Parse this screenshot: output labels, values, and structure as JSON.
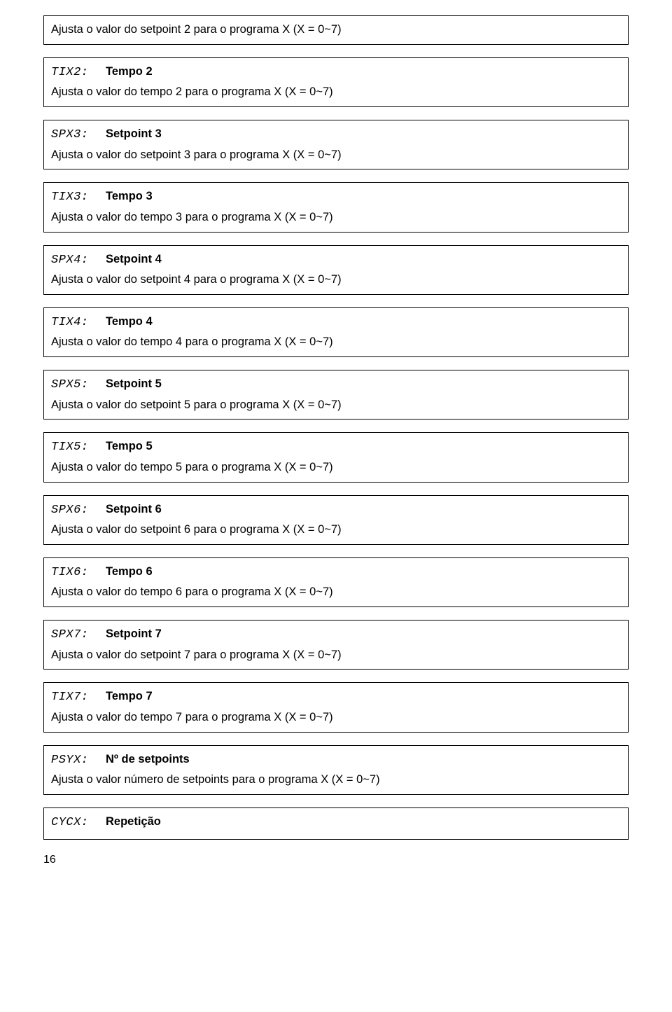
{
  "blocks": [
    {
      "description_only": true,
      "description": "Ajusta o valor do setpoint 2 para o programa X (X = 0~7)"
    },
    {
      "code": "TIX2:",
      "label": "Tempo 2",
      "description": "Ajusta o valor do tempo 2 para o programa X (X = 0~7)"
    },
    {
      "code": "SPX3:",
      "label": "Setpoint 3",
      "description": "Ajusta o valor do setpoint 3 para o programa X (X = 0~7)"
    },
    {
      "code": "TIX3:",
      "label": "Tempo 3",
      "description": "Ajusta o valor do tempo 3 para o programa X (X = 0~7)"
    },
    {
      "code": "SPX4:",
      "label": "Setpoint 4",
      "description": "Ajusta o valor do setpoint 4 para o programa X (X = 0~7)"
    },
    {
      "code": "TIX4:",
      "label": "Tempo 4",
      "description": "Ajusta o valor do tempo 4 para o programa X (X = 0~7)"
    },
    {
      "code": "SPX5:",
      "label": "Setpoint 5",
      "description": "Ajusta o valor do setpoint 5 para o programa X (X = 0~7)"
    },
    {
      "code": "TIX5:",
      "label": "Tempo 5",
      "description": "Ajusta o valor do tempo 5 para o programa X (X = 0~7)"
    },
    {
      "code": "SPX6:",
      "label": "Setpoint 6",
      "description": "Ajusta o valor do setpoint 6 para o programa X (X = 0~7)"
    },
    {
      "code": "TIX6:",
      "label": "Tempo 6",
      "description": "Ajusta o valor do tempo 6 para o programa X (X = 0~7)"
    },
    {
      "code": "SPX7:",
      "label": "Setpoint 7",
      "description": "Ajusta o valor do setpoint 7 para o programa X (X = 0~7)"
    },
    {
      "code": "TIX7:",
      "label": "Tempo 7",
      "description": "Ajusta o valor do tempo 7 para o programa X (X = 0~7)"
    },
    {
      "code": "PSYX:",
      "label": "Nº de setpoints",
      "description": "Ajusta o valor número de setpoints para o programa X (X = 0~7)"
    },
    {
      "code": "CYCX:",
      "label": "Repetição",
      "header_only": true
    }
  ],
  "page_number": "16"
}
